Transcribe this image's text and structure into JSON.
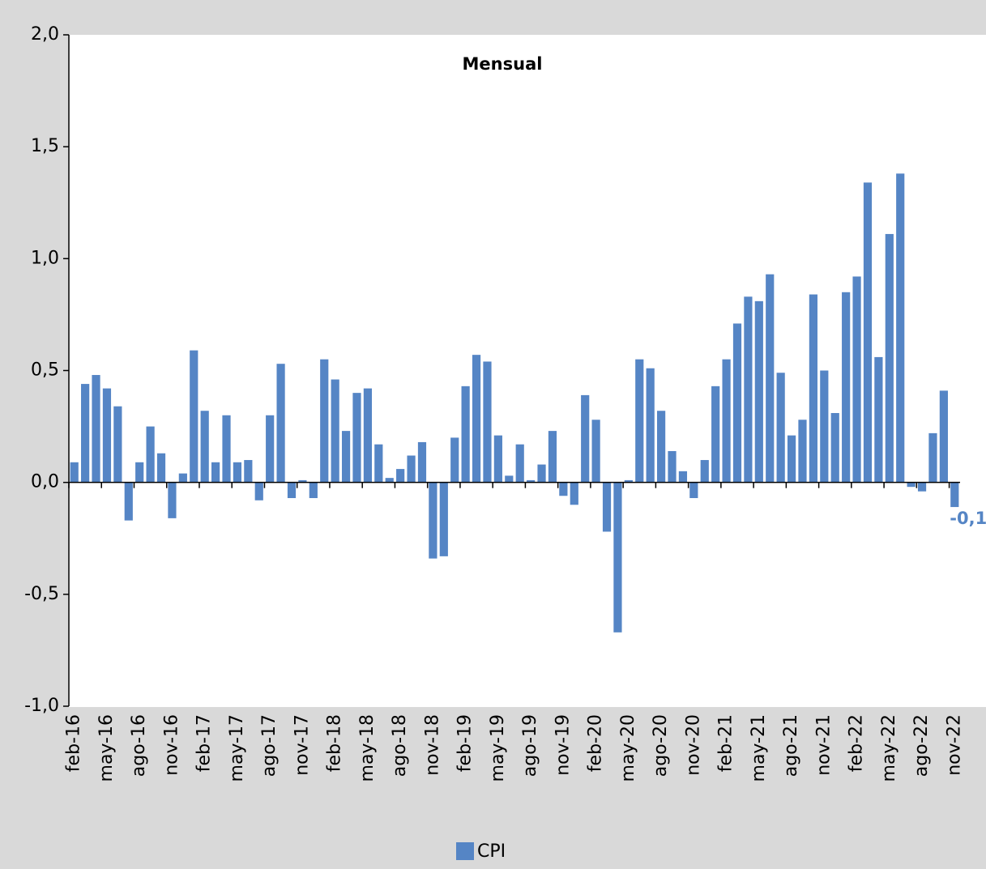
{
  "chart_data": {
    "type": "bar",
    "title": "Mensual",
    "categories": [
      "feb-16",
      null,
      null,
      "may-16",
      null,
      null,
      "ago-16",
      null,
      null,
      "nov-16",
      null,
      null,
      "feb-17",
      null,
      null,
      "may-17",
      null,
      null,
      "ago-17",
      null,
      null,
      "nov-17",
      null,
      null,
      "feb-18",
      null,
      null,
      "may-18",
      null,
      null,
      "ago-18",
      null,
      null,
      "nov-18",
      null,
      null,
      "feb-19",
      null,
      null,
      "may-19",
      null,
      null,
      "ago-19",
      null,
      null,
      "nov-19",
      null,
      null,
      "feb-20",
      null,
      null,
      "may-20",
      null,
      null,
      "ago-20",
      null,
      null,
      "nov-20",
      null,
      null,
      "feb-21",
      null,
      null,
      "may-21",
      null,
      null,
      "ago-21",
      null,
      null,
      "nov-21",
      null,
      null,
      "feb-22",
      null,
      null,
      "may-22",
      null,
      null,
      "ago-22",
      null,
      null,
      "nov-22"
    ],
    "series": [
      {
        "name": "CPI",
        "color": "#5585c5",
        "values": [
          0.09,
          0.44,
          0.48,
          0.42,
          0.34,
          -0.17,
          0.09,
          0.25,
          0.13,
          -0.16,
          0.04,
          0.59,
          0.32,
          0.09,
          0.3,
          0.09,
          0.1,
          -0.08,
          0.3,
          0.53,
          -0.07,
          0.01,
          -0.07,
          0.55,
          0.46,
          0.23,
          0.4,
          0.42,
          0.17,
          0.02,
          0.06,
          0.12,
          0.18,
          -0.34,
          -0.33,
          0.2,
          0.43,
          0.57,
          0.54,
          0.21,
          0.03,
          0.17,
          0.01,
          0.08,
          0.23,
          -0.06,
          -0.1,
          0.39,
          0.28,
          -0.22,
          -0.67,
          0.01,
          0.55,
          0.51,
          0.32,
          0.14,
          0.05,
          -0.07,
          0.1,
          0.43,
          0.55,
          0.71,
          0.83,
          0.81,
          0.93,
          0.49,
          0.21,
          0.28,
          0.84,
          0.5,
          0.31,
          0.85,
          0.92,
          1.34,
          0.56,
          1.11,
          1.38,
          -0.02,
          -0.04,
          0.22,
          0.41,
          -0.11
        ],
        "value_labels": [
          null,
          null,
          null,
          null,
          null,
          null,
          null,
          null,
          null,
          null,
          null,
          null,
          null,
          null,
          null,
          null,
          null,
          null,
          null,
          null,
          null,
          null,
          null,
          null,
          null,
          null,
          null,
          null,
          null,
          null,
          null,
          null,
          null,
          null,
          null,
          null,
          null,
          null,
          null,
          null,
          null,
          null,
          null,
          null,
          null,
          null,
          null,
          null,
          null,
          null,
          null,
          null,
          null,
          null,
          null,
          null,
          null,
          null,
          null,
          null,
          null,
          null,
          null,
          null,
          null,
          null,
          null,
          null,
          null,
          null,
          null,
          null,
          null,
          null,
          null,
          null,
          null,
          null,
          null,
          null,
          null,
          "-0,1"
        ]
      }
    ],
    "ylim": [
      -1.0,
      2.0
    ],
    "yticks": [
      {
        "value": -1.0,
        "label": "-1,0"
      },
      {
        "value": -0.5,
        "label": "-0,5"
      },
      {
        "value": 0,
        "label": "0,0"
      },
      {
        "value": 0.5,
        "label": "0,5"
      },
      {
        "value": 1.0,
        "label": "1,0"
      },
      {
        "value": 1.5,
        "label": "1,5"
      },
      {
        "value": 2.0,
        "label": "2,0"
      }
    ],
    "grid": false,
    "legend": "bottom"
  }
}
